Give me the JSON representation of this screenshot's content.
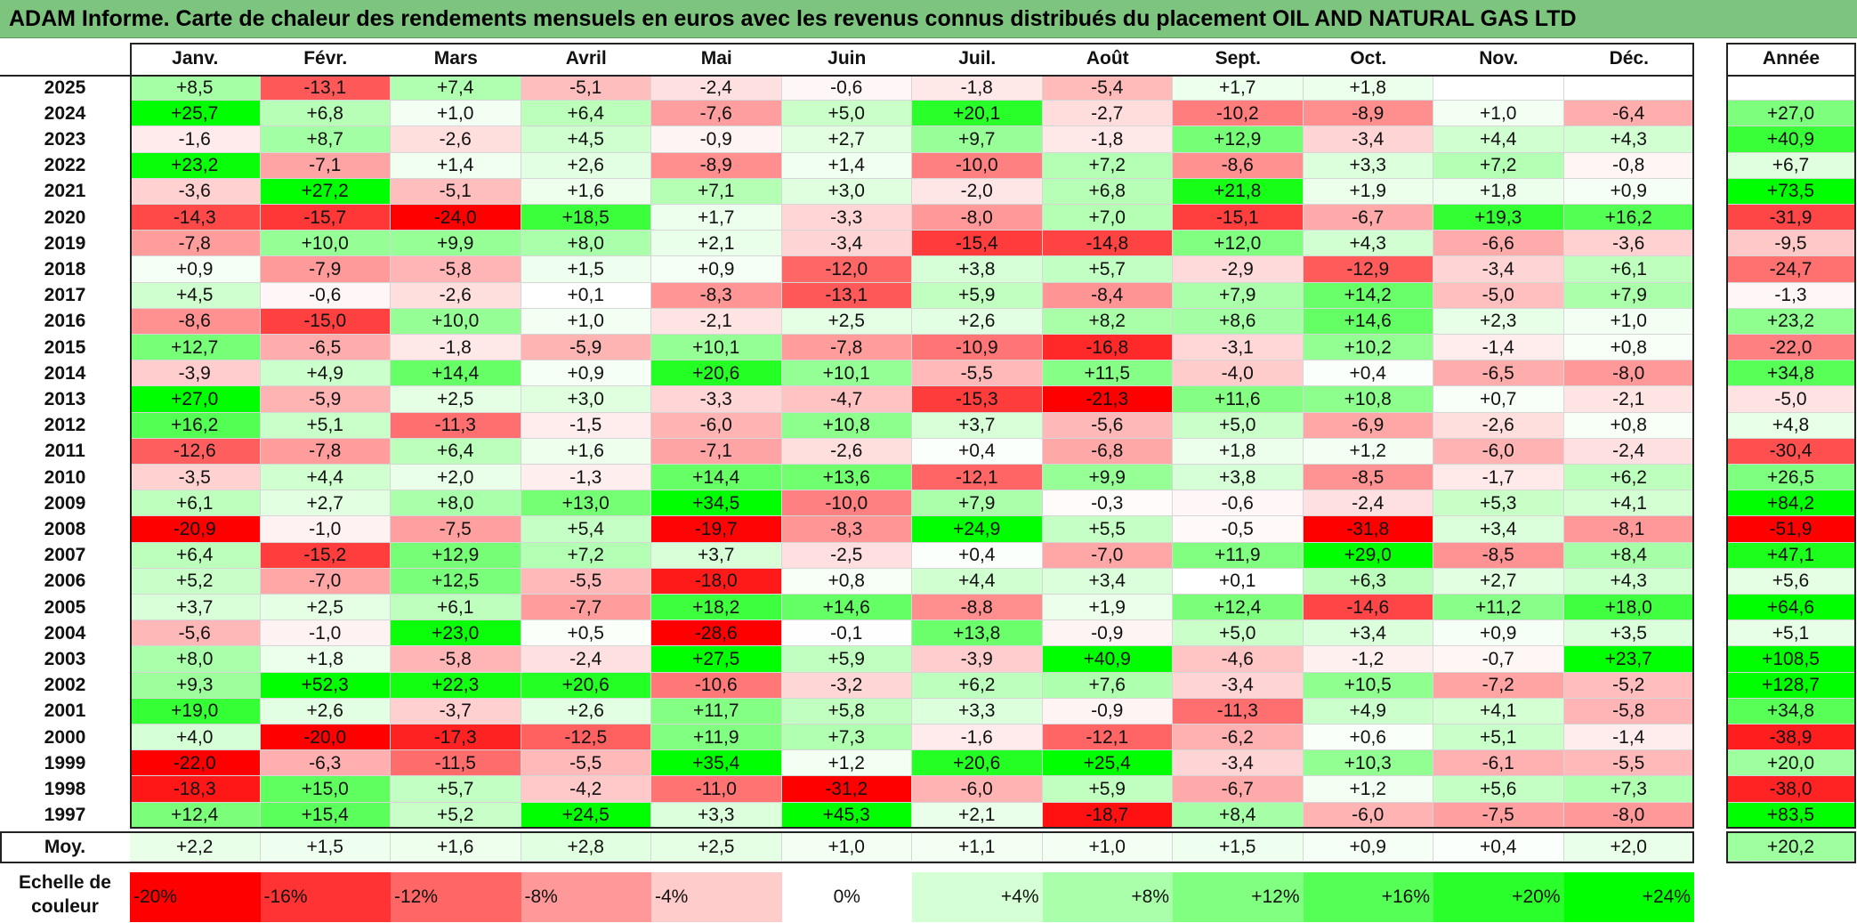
{
  "title": "ADAM Informe. Carte de chaleur des rendements mensuels en euros avec les revenus connus distribués du placement OIL AND NATURAL GAS LTD",
  "chart_data": {
    "type": "heatmap",
    "columns": [
      "Janv.",
      "Févr.",
      "Mars",
      "Avril",
      "Mai",
      "Juin",
      "Juil.",
      "Août",
      "Sept.",
      "Oct.",
      "Nov.",
      "Déc."
    ],
    "year_column": "Année",
    "average_label": "Moy.",
    "rows": [
      {
        "year": "2025",
        "months": [
          "+8,5",
          "-13,1",
          "+7,4",
          "-5,1",
          "-2,4",
          "-0,6",
          "-1,8",
          "-5,4",
          "+1,7",
          "+1,8",
          "",
          ""
        ],
        "annual": ""
      },
      {
        "year": "2024",
        "months": [
          "+25,7",
          "+6,8",
          "+1,0",
          "+6,4",
          "-7,6",
          "+5,0",
          "+20,1",
          "-2,7",
          "-10,2",
          "-8,9",
          "+1,0",
          "-6,4"
        ],
        "annual": "+27,0"
      },
      {
        "year": "2023",
        "months": [
          "-1,6",
          "+8,7",
          "-2,6",
          "+4,5",
          "-0,9",
          "+2,7",
          "+9,7",
          "-1,8",
          "+12,9",
          "-3,4",
          "+4,4",
          "+4,3"
        ],
        "annual": "+40,9"
      },
      {
        "year": "2022",
        "months": [
          "+23,2",
          "-7,1",
          "+1,4",
          "+2,6",
          "-8,9",
          "+1,4",
          "-10,0",
          "+7,2",
          "-8,6",
          "+3,3",
          "+7,2",
          "-0,8"
        ],
        "annual": "+6,7"
      },
      {
        "year": "2021",
        "months": [
          "-3,6",
          "+27,2",
          "-5,1",
          "+1,6",
          "+7,1",
          "+3,0",
          "-2,0",
          "+6,8",
          "+21,8",
          "+1,9",
          "+1,8",
          "+0,9"
        ],
        "annual": "+73,5"
      },
      {
        "year": "2020",
        "months": [
          "-14,3",
          "-15,7",
          "-24,0",
          "+18,5",
          "+1,7",
          "-3,3",
          "-8,0",
          "+7,0",
          "-15,1",
          "-6,7",
          "+19,3",
          "+16,2"
        ],
        "annual": "-31,9"
      },
      {
        "year": "2019",
        "months": [
          "-7,8",
          "+10,0",
          "+9,9",
          "+8,0",
          "+2,1",
          "-3,4",
          "-15,4",
          "-14,8",
          "+12,0",
          "+4,3",
          "-6,6",
          "-3,6"
        ],
        "annual": "-9,5"
      },
      {
        "year": "2018",
        "months": [
          "+0,9",
          "-7,9",
          "-5,8",
          "+1,5",
          "+0,9",
          "-12,0",
          "+3,8",
          "+5,7",
          "-2,9",
          "-12,9",
          "-3,4",
          "+6,1"
        ],
        "annual": "-24,7"
      },
      {
        "year": "2017",
        "months": [
          "+4,5",
          "-0,6",
          "-2,6",
          "+0,1",
          "-8,3",
          "-13,1",
          "+5,9",
          "-8,4",
          "+7,9",
          "+14,2",
          "-5,0",
          "+7,9"
        ],
        "annual": "-1,3"
      },
      {
        "year": "2016",
        "months": [
          "-8,6",
          "-15,0",
          "+10,0",
          "+1,0",
          "-2,1",
          "+2,5",
          "+2,6",
          "+8,2",
          "+8,6",
          "+14,6",
          "+2,3",
          "+1,0"
        ],
        "annual": "+23,2"
      },
      {
        "year": "2015",
        "months": [
          "+12,7",
          "-6,5",
          "-1,8",
          "-5,9",
          "+10,1",
          "-7,8",
          "-10,9",
          "-16,8",
          "-3,1",
          "+10,2",
          "-1,4",
          "+0,8"
        ],
        "annual": "-22,0"
      },
      {
        "year": "2014",
        "months": [
          "-3,9",
          "+4,9",
          "+14,4",
          "+0,9",
          "+20,6",
          "+10,1",
          "-5,5",
          "+11,5",
          "-4,0",
          "+0,4",
          "-6,5",
          "-8,0"
        ],
        "annual": "+34,8"
      },
      {
        "year": "2013",
        "months": [
          "+27,0",
          "-5,9",
          "+2,5",
          "+3,0",
          "-3,3",
          "-4,7",
          "-15,3",
          "-21,3",
          "+11,6",
          "+10,8",
          "+0,7",
          "-2,1"
        ],
        "annual": "-5,0"
      },
      {
        "year": "2012",
        "months": [
          "+16,2",
          "+5,1",
          "-11,3",
          "-1,5",
          "-6,0",
          "+10,8",
          "+3,7",
          "-5,6",
          "+5,0",
          "-6,9",
          "-2,6",
          "+0,8"
        ],
        "annual": "+4,8"
      },
      {
        "year": "2011",
        "months": [
          "-12,6",
          "-7,8",
          "+6,4",
          "+1,6",
          "-7,1",
          "-2,6",
          "+0,4",
          "-6,8",
          "+1,8",
          "+1,2",
          "-6,0",
          "-2,4"
        ],
        "annual": "-30,4"
      },
      {
        "year": "2010",
        "months": [
          "-3,5",
          "+4,4",
          "+2,0",
          "-1,3",
          "+14,4",
          "+13,6",
          "-12,1",
          "+9,9",
          "+3,8",
          "-8,5",
          "-1,7",
          "+6,2"
        ],
        "annual": "+26,5"
      },
      {
        "year": "2009",
        "months": [
          "+6,1",
          "+2,7",
          "+8,0",
          "+13,0",
          "+34,5",
          "-10,0",
          "+7,9",
          "-0,3",
          "-0,6",
          "-2,4",
          "+5,3",
          "+4,1"
        ],
        "annual": "+84,2"
      },
      {
        "year": "2008",
        "months": [
          "-20,9",
          "-1,0",
          "-7,5",
          "+5,4",
          "-19,7",
          "-8,3",
          "+24,9",
          "+5,5",
          "-0,5",
          "-31,8",
          "+3,4",
          "-8,1"
        ],
        "annual": "-51,9"
      },
      {
        "year": "2007",
        "months": [
          "+6,4",
          "-15,2",
          "+12,9",
          "+7,2",
          "+3,7",
          "-2,5",
          "+0,4",
          "-7,0",
          "+11,9",
          "+29,0",
          "-8,5",
          "+8,4"
        ],
        "annual": "+47,1"
      },
      {
        "year": "2006",
        "months": [
          "+5,2",
          "-7,0",
          "+12,5",
          "-5,5",
          "-18,0",
          "+0,8",
          "+4,4",
          "+3,4",
          "+0,1",
          "+6,3",
          "+2,7",
          "+4,3"
        ],
        "annual": "+5,6"
      },
      {
        "year": "2005",
        "months": [
          "+3,7",
          "+2,5",
          "+6,1",
          "-7,7",
          "+18,2",
          "+14,6",
          "-8,8",
          "+1,9",
          "+12,4",
          "-14,6",
          "+11,2",
          "+18,0"
        ],
        "annual": "+64,6"
      },
      {
        "year": "2004",
        "months": [
          "-5,6",
          "-1,0",
          "+23,0",
          "+0,5",
          "-28,6",
          "-0,1",
          "+13,8",
          "-0,9",
          "+5,0",
          "+3,4",
          "+0,9",
          "+3,5"
        ],
        "annual": "+5,1"
      },
      {
        "year": "2003",
        "months": [
          "+8,0",
          "+1,8",
          "-5,8",
          "-2,4",
          "+27,5",
          "+5,9",
          "-3,9",
          "+40,9",
          "-4,6",
          "-1,2",
          "-0,7",
          "+23,7"
        ],
        "annual": "+108,5"
      },
      {
        "year": "2002",
        "months": [
          "+9,3",
          "+52,3",
          "+22,3",
          "+20,6",
          "-10,6",
          "-3,2",
          "+6,2",
          "+7,6",
          "-3,4",
          "+10,5",
          "-7,2",
          "-5,2"
        ],
        "annual": "+128,7"
      },
      {
        "year": "2001",
        "months": [
          "+19,0",
          "+2,6",
          "-3,7",
          "+2,6",
          "+11,7",
          "+5,8",
          "+3,3",
          "-0,9",
          "-11,3",
          "+4,9",
          "+4,1",
          "-5,8"
        ],
        "annual": "+34,8"
      },
      {
        "year": "2000",
        "months": [
          "+4,0",
          "-20,0",
          "-17,3",
          "-12,5",
          "+11,9",
          "+7,3",
          "-1,6",
          "-12,1",
          "-6,2",
          "+0,6",
          "+5,1",
          "-1,4"
        ],
        "annual": "-38,9"
      },
      {
        "year": "1999",
        "months": [
          "-22,0",
          "-6,3",
          "-11,5",
          "-5,5",
          "+35,4",
          "+1,2",
          "+20,6",
          "+25,4",
          "-3,4",
          "+10,3",
          "-6,1",
          "-5,5"
        ],
        "annual": "+20,0"
      },
      {
        "year": "1998",
        "months": [
          "-18,3",
          "+15,0",
          "+5,7",
          "-4,2",
          "-11,0",
          "-31,2",
          "-6,0",
          "+5,9",
          "-6,7",
          "+1,2",
          "+5,6",
          "+7,3"
        ],
        "annual": "-38,0"
      },
      {
        "year": "1997",
        "months": [
          "+12,4",
          "+15,4",
          "+5,2",
          "+24,5",
          "+3,3",
          "+45,3",
          "+2,1",
          "-18,7",
          "+8,4",
          "-6,0",
          "-7,5",
          "-8,0"
        ],
        "annual": "+83,5"
      }
    ],
    "averages": {
      "months": [
        "+2,2",
        "+1,5",
        "+1,6",
        "+2,8",
        "+2,5",
        "+1,0",
        "+1,1",
        "+1,0",
        "+1,5",
        "+0,9",
        "+0,4",
        "+2,0"
      ],
      "annual": "+20,2"
    },
    "color_scale": {
      "label": "Echelle de couleur",
      "stops": [
        "-20%",
        "-16%",
        "-12%",
        "-8%",
        "-4%",
        "0%",
        "+4%",
        "+8%",
        "+12%",
        "+16%",
        "+20%",
        "+24%"
      ],
      "stop_values": [
        -20,
        -16,
        -12,
        -8,
        -4,
        0,
        4,
        8,
        12,
        16,
        20,
        24
      ],
      "negative_color": "#ff0000",
      "neutral_color": "#ffffff",
      "positive_color": "#00ff00"
    }
  }
}
